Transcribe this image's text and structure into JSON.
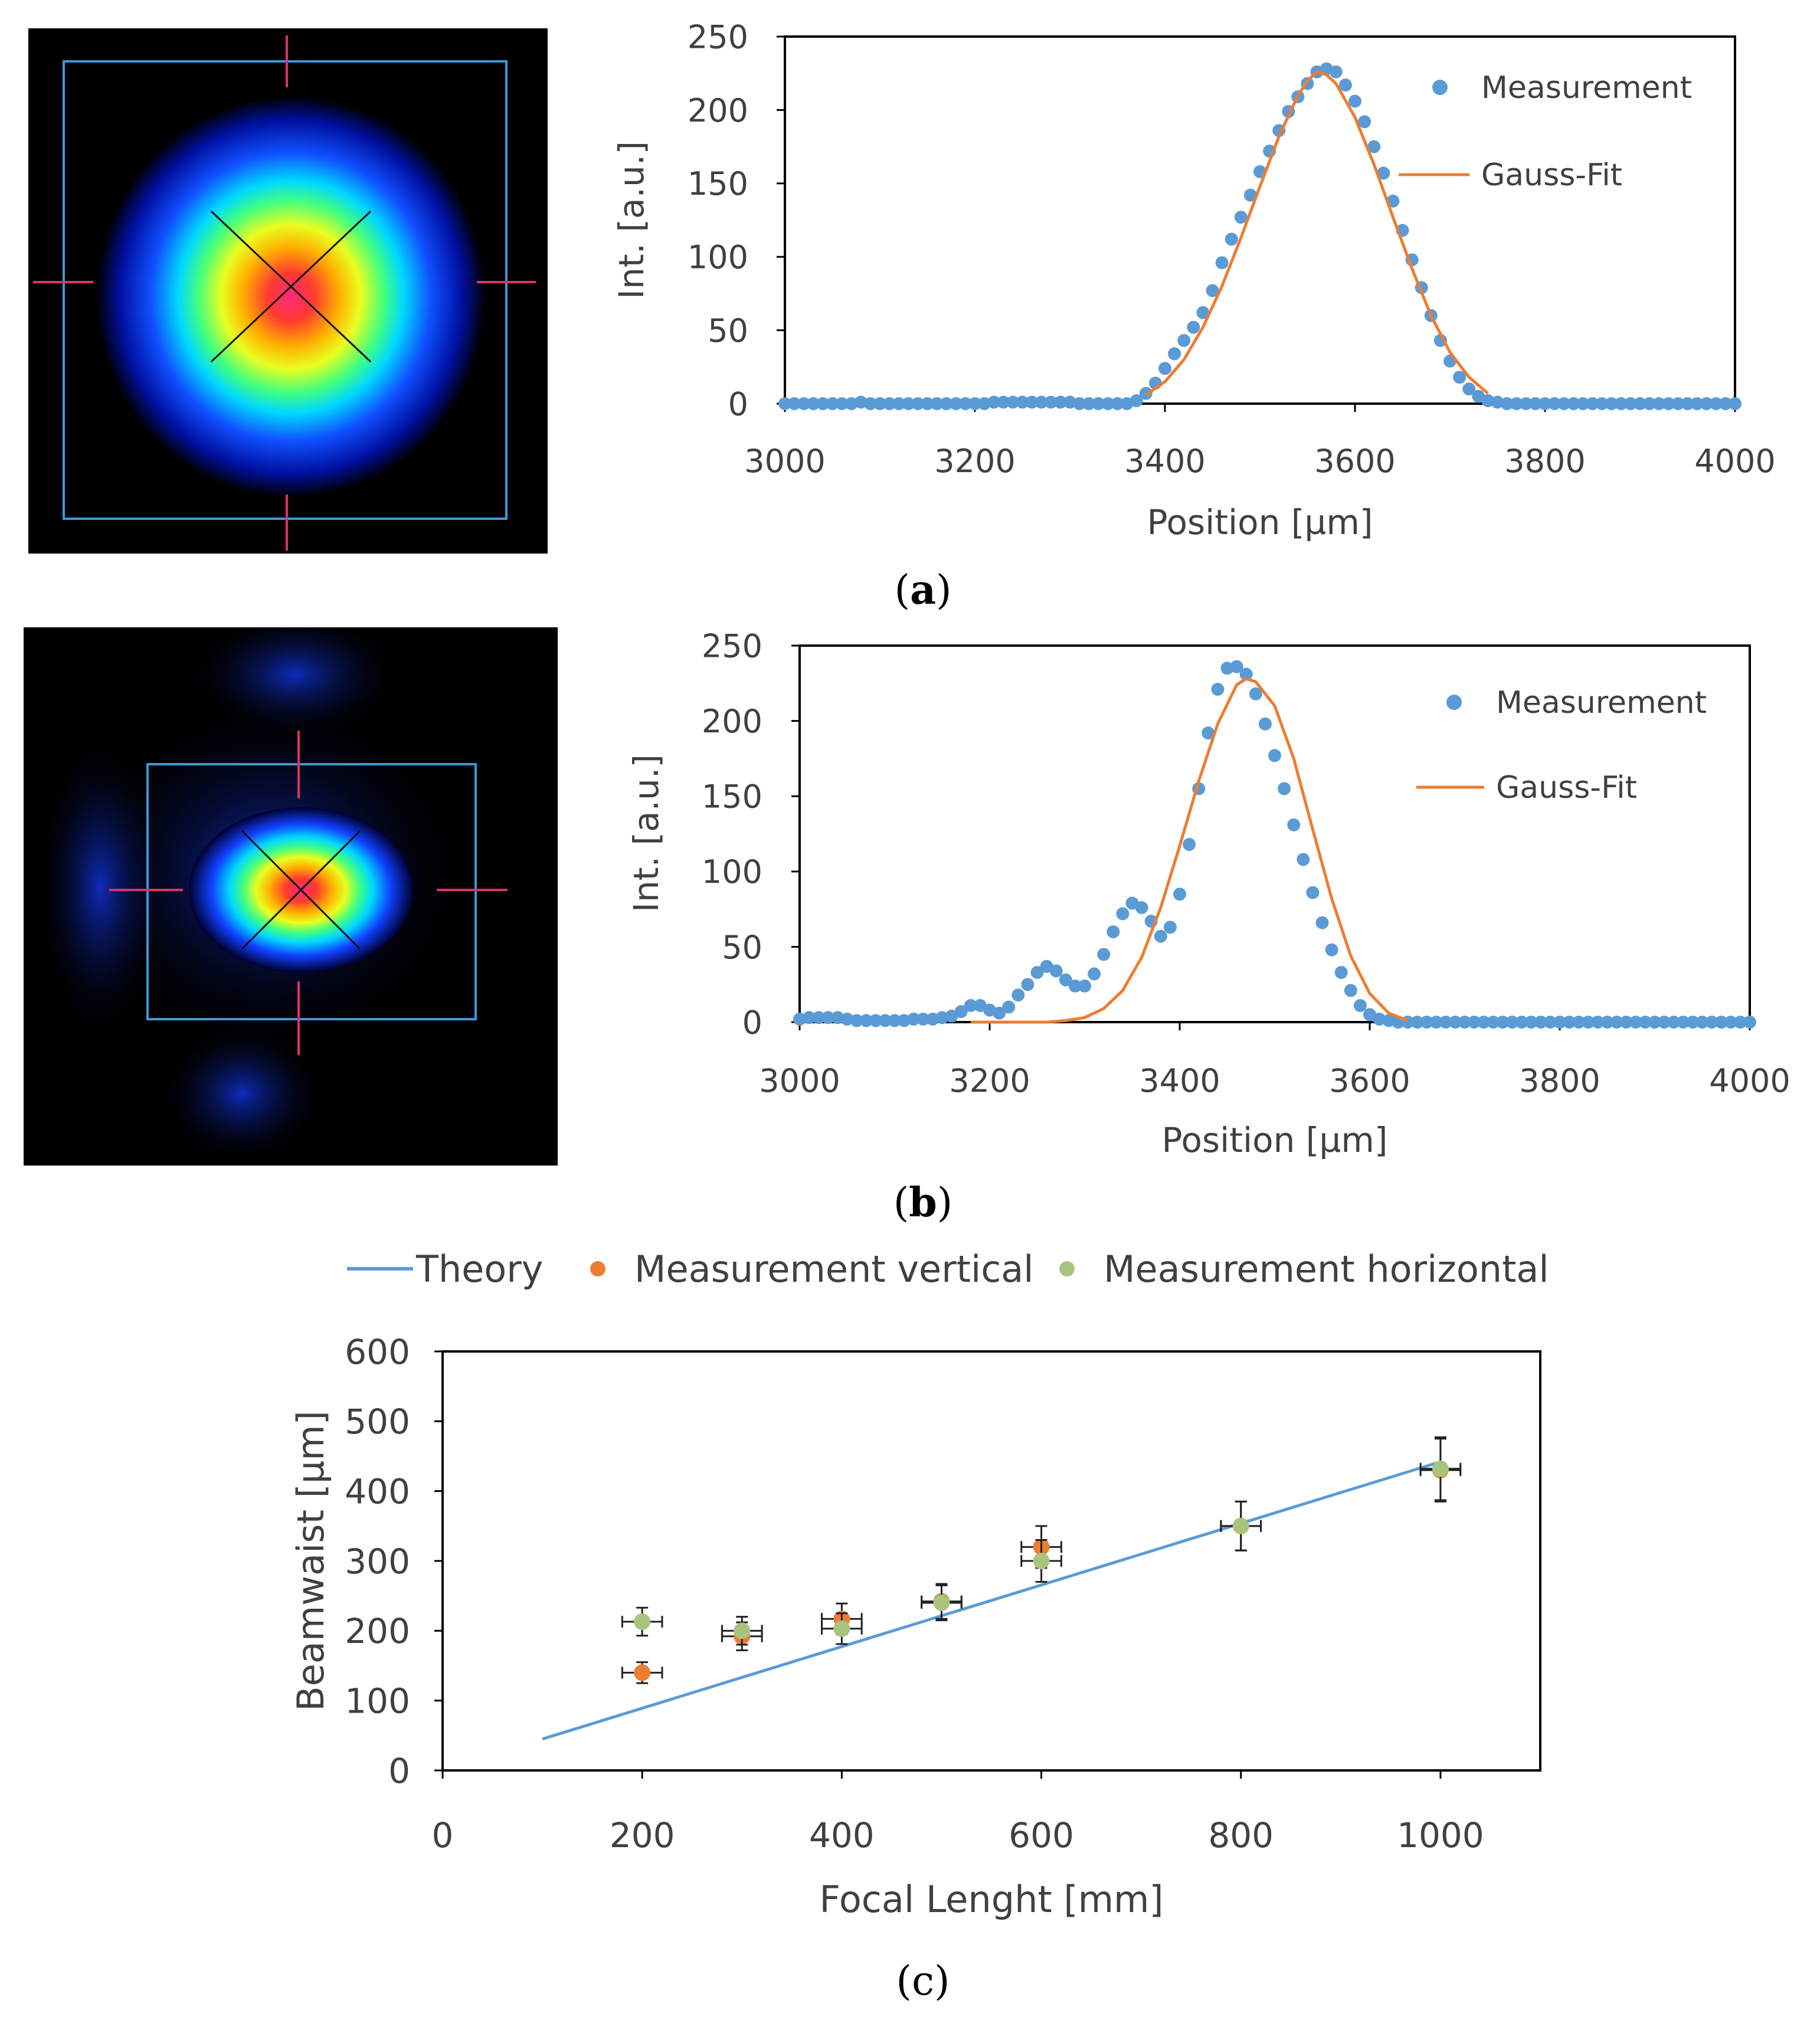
{
  "captions": {
    "a": {
      "open": "(",
      "letter": "a",
      "close": ")"
    },
    "b": {
      "open": "(",
      "letter": "b",
      "close": ")"
    },
    "c": {
      "open": "(",
      "letter": "c",
      "close": ")"
    }
  },
  "colors": {
    "measurement": "#5b9bd5",
    "gauss_fit": "#ed7d31",
    "theory": "#5b9bd5",
    "meas_vertical": "#ed7d31",
    "meas_horizontal": "#a9c47f",
    "axis_text": "#404040"
  },
  "chart_data": [
    {
      "id": "a",
      "type": "scatter",
      "title": "",
      "xlabel": "Position [µm]",
      "ylabel": "Int. [a.u.]",
      "xlim": [
        3000,
        4000
      ],
      "ylim": [
        0,
        250
      ],
      "xticks": [
        3000,
        3200,
        3400,
        3600,
        3800,
        4000
      ],
      "yticks": [
        0,
        50,
        100,
        150,
        200,
        250
      ],
      "legend_position": "top-right",
      "series": [
        {
          "name": "Measurement",
          "kind": "scatter",
          "x": [
            3000,
            3010,
            3020,
            3030,
            3040,
            3050,
            3060,
            3070,
            3080,
            3090,
            3100,
            3110,
            3120,
            3130,
            3140,
            3150,
            3160,
            3170,
            3180,
            3190,
            3200,
            3210,
            3220,
            3230,
            3240,
            3250,
            3260,
            3270,
            3280,
            3290,
            3300,
            3310,
            3320,
            3330,
            3340,
            3350,
            3360,
            3370,
            3380,
            3390,
            3400,
            3410,
            3420,
            3430,
            3440,
            3450,
            3460,
            3470,
            3480,
            3490,
            3500,
            3510,
            3520,
            3530,
            3540,
            3550,
            3560,
            3570,
            3580,
            3590,
            3600,
            3610,
            3620,
            3630,
            3640,
            3650,
            3660,
            3670,
            3680,
            3690,
            3700,
            3710,
            3720,
            3730,
            3740,
            3750,
            3760,
            3770,
            3780,
            3790,
            3800,
            3810,
            3820,
            3830,
            3840,
            3850,
            3860,
            3870,
            3880,
            3890,
            3900,
            3910,
            3920,
            3930,
            3940,
            3950,
            3960,
            3970,
            3980,
            3990,
            4000
          ],
          "y": [
            0,
            0,
            0,
            0,
            0,
            0,
            0,
            0,
            1,
            0,
            0,
            0,
            0,
            0,
            0,
            0,
            0,
            0,
            0,
            0,
            0,
            0,
            1,
            1,
            1,
            1,
            1,
            1,
            1,
            1,
            1,
            0,
            0,
            0,
            0,
            0,
            0,
            2,
            7,
            14,
            24,
            34,
            43,
            52,
            62,
            77,
            96,
            112,
            127,
            142,
            158,
            172,
            186,
            199,
            209,
            218,
            226,
            228,
            226,
            217,
            206,
            192,
            175,
            157,
            138,
            118,
            98,
            79,
            60,
            43,
            29,
            18,
            10,
            5,
            2,
            1,
            0,
            0,
            0,
            0,
            0,
            0,
            0,
            0,
            0,
            0,
            0,
            0,
            0,
            0,
            0,
            0,
            0,
            0,
            0,
            0,
            0,
            0,
            0,
            0,
            0
          ]
        },
        {
          "name": "Gauss-Fit",
          "kind": "line",
          "x": [
            3380,
            3400,
            3420,
            3440,
            3460,
            3480,
            3500,
            3520,
            3540,
            3550,
            3560,
            3570,
            3580,
            3600,
            3620,
            3640,
            3660,
            3680,
            3700,
            3720,
            3740
          ],
          "y": [
            6,
            15,
            30,
            52,
            80,
            113,
            148,
            182,
            210,
            220,
            226,
            224,
            218,
            195,
            163,
            127,
            92,
            60,
            35,
            18,
            7
          ]
        }
      ]
    },
    {
      "id": "b",
      "type": "scatter",
      "title": "",
      "xlabel": "Position [µm]",
      "ylabel": "Int. [a.u.]",
      "xlim": [
        3000,
        4000
      ],
      "ylim": [
        0,
        250
      ],
      "xticks": [
        3000,
        3200,
        3400,
        3600,
        3800,
        4000
      ],
      "yticks": [
        0,
        50,
        100,
        150,
        200,
        250
      ],
      "legend_position": "top-right",
      "series": [
        {
          "name": "Measurement",
          "kind": "scatter",
          "x": [
            3000,
            3010,
            3020,
            3030,
            3040,
            3050,
            3060,
            3070,
            3080,
            3090,
            3100,
            3110,
            3120,
            3130,
            3140,
            3150,
            3160,
            3170,
            3180,
            3190,
            3200,
            3210,
            3220,
            3230,
            3240,
            3250,
            3260,
            3270,
            3280,
            3290,
            3300,
            3310,
            3320,
            3330,
            3340,
            3350,
            3360,
            3370,
            3380,
            3390,
            3400,
            3410,
            3420,
            3430,
            3440,
            3450,
            3460,
            3470,
            3480,
            3490,
            3500,
            3510,
            3520,
            3530,
            3540,
            3550,
            3560,
            3570,
            3580,
            3590,
            3600,
            3610,
            3620,
            3630,
            3640,
            3650,
            3660,
            3670,
            3680,
            3690,
            3700,
            3710,
            3720,
            3730,
            3740,
            3750,
            3760,
            3770,
            3780,
            3790,
            3800,
            3810,
            3820,
            3830,
            3840,
            3850,
            3860,
            3870,
            3880,
            3890,
            3900,
            3910,
            3920,
            3930,
            3940,
            3950,
            3960,
            3970,
            3980,
            3990,
            4000
          ],
          "y": [
            2,
            3,
            3,
            3,
            3,
            2,
            1,
            1,
            1,
            1,
            1,
            1,
            2,
            2,
            2,
            3,
            4,
            7,
            11,
            11,
            8,
            6,
            10,
            18,
            25,
            33,
            37,
            34,
            28,
            24,
            24,
            32,
            45,
            60,
            72,
            79,
            76,
            67,
            57,
            63,
            85,
            118,
            155,
            192,
            221,
            235,
            236,
            231,
            218,
            198,
            177,
            155,
            131,
            108,
            86,
            66,
            48,
            33,
            21,
            11,
            5,
            2,
            1,
            0,
            0,
            0,
            0,
            0,
            0,
            0,
            0,
            0,
            0,
            0,
            0,
            0,
            0,
            0,
            0,
            0,
            0,
            0,
            0,
            0,
            0,
            0,
            0,
            0,
            0,
            0,
            0,
            0,
            0,
            0,
            0,
            0,
            0,
            0,
            0,
            0,
            0
          ]
        },
        {
          "name": "Gauss-Fit",
          "kind": "line",
          "x": [
            3180,
            3200,
            3220,
            3240,
            3260,
            3280,
            3300,
            3320,
            3340,
            3360,
            3380,
            3400,
            3420,
            3440,
            3460,
            3470,
            3480,
            3500,
            3520,
            3540,
            3560,
            3580,
            3600,
            3620,
            3640
          ],
          "y": [
            0,
            0,
            0,
            0,
            0,
            1,
            3,
            9,
            21,
            43,
            76,
            117,
            160,
            198,
            224,
            228,
            226,
            210,
            175,
            128,
            82,
            44,
            19,
            6,
            1
          ]
        }
      ]
    },
    {
      "id": "c",
      "type": "scatter",
      "title": "",
      "xlabel": "Focal Lenght  [mm]",
      "ylabel": "Beamwaist [µm]",
      "xlim": [
        0,
        1100
      ],
      "ylim": [
        0,
        600
      ],
      "xticks": [
        0,
        200,
        400,
        600,
        800,
        1000
      ],
      "yticks": [
        0,
        100,
        200,
        300,
        400,
        500,
        600
      ],
      "legend_position": "top",
      "series": [
        {
          "name": "Theory",
          "kind": "line",
          "x": [
            100,
            1000
          ],
          "y": [
            45,
            442
          ]
        },
        {
          "name": "Measurement vertical",
          "kind": "errorbar",
          "x": [
            200,
            300,
            400,
            500,
            600,
            800,
            1000
          ],
          "y": [
            140,
            192,
            217,
            242,
            320,
            350,
            430
          ],
          "yerr": [
            15,
            20,
            22,
            25,
            30,
            35,
            45
          ],
          "xerr": [
            20,
            20,
            20,
            20,
            20,
            20,
            20
          ]
        },
        {
          "name": "Measurement horizontal",
          "kind": "errorbar",
          "x": [
            200,
            300,
            400,
            500,
            600,
            800,
            1000
          ],
          "y": [
            213,
            200,
            203,
            240,
            300,
            350,
            432
          ],
          "yerr": [
            20,
            20,
            22,
            25,
            30,
            35,
            45
          ],
          "xerr": [
            20,
            20,
            20,
            20,
            20,
            20,
            20
          ]
        }
      ]
    }
  ]
}
